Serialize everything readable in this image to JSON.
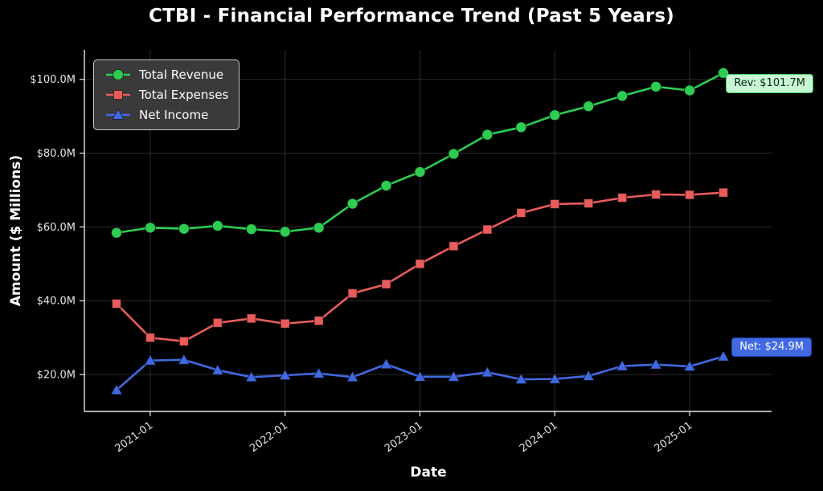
{
  "chart_data": {
    "type": "line",
    "title": "CTBI - Financial Performance Trend (Past 5 Years)",
    "xlabel": "Date",
    "ylabel": "Amount ($ Millions)",
    "x": [
      "2020-10",
      "2021-01",
      "2021-04",
      "2021-07",
      "2021-10",
      "2022-01",
      "2022-04",
      "2022-07",
      "2022-10",
      "2023-01",
      "2023-04",
      "2023-07",
      "2023-10",
      "2024-01",
      "2024-04",
      "2024-07",
      "2024-10",
      "2025-01",
      "2025-04"
    ],
    "series": [
      {
        "name": "Total Revenue",
        "color": "#2ecc52",
        "marker": "circle",
        "values": [
          58.4,
          59.8,
          59.5,
          60.3,
          59.4,
          58.7,
          59.8,
          66.3,
          71.2,
          74.9,
          79.8,
          85.0,
          87.0,
          90.3,
          92.7,
          95.5,
          98.0,
          97.0,
          101.7
        ]
      },
      {
        "name": "Total Expenses",
        "color": "#e85c5c",
        "marker": "square",
        "values": [
          39.2,
          30.0,
          29.0,
          34.0,
          35.2,
          33.8,
          34.6,
          42.0,
          44.5,
          50.0,
          54.8,
          59.3,
          63.8,
          66.2,
          66.4,
          67.9,
          68.8,
          68.7,
          69.3
        ]
      },
      {
        "name": "Net Income",
        "color": "#4169e1",
        "marker": "triangle",
        "values": [
          15.8,
          23.8,
          24.0,
          21.2,
          19.3,
          19.8,
          20.3,
          19.3,
          22.8,
          19.4,
          19.4,
          20.6,
          18.7,
          18.8,
          19.6,
          22.3,
          22.7,
          22.2,
          24.9
        ]
      }
    ],
    "ylim": [
      10,
      108
    ],
    "yticks": [
      20,
      40,
      60,
      80,
      100
    ],
    "ytick_labels": [
      "$20.0M",
      "$40.0M",
      "$60.0M",
      "$80.0M",
      "$100.0M"
    ],
    "xtick_indices": [
      1,
      5,
      9,
      13,
      17
    ],
    "xtick_labels": [
      "2021-01",
      "2022-01",
      "2023-01",
      "2024-01",
      "2025-01"
    ],
    "grid": true,
    "legend_position": "upper left",
    "background": "#000000"
  },
  "annotations": {
    "revenue": {
      "label": "Rev: $101.7M",
      "color": "#2ecc52"
    },
    "net": {
      "label": "Net: $24.9M",
      "color": "#4169e1",
      "border": "#1c3fb8"
    }
  }
}
